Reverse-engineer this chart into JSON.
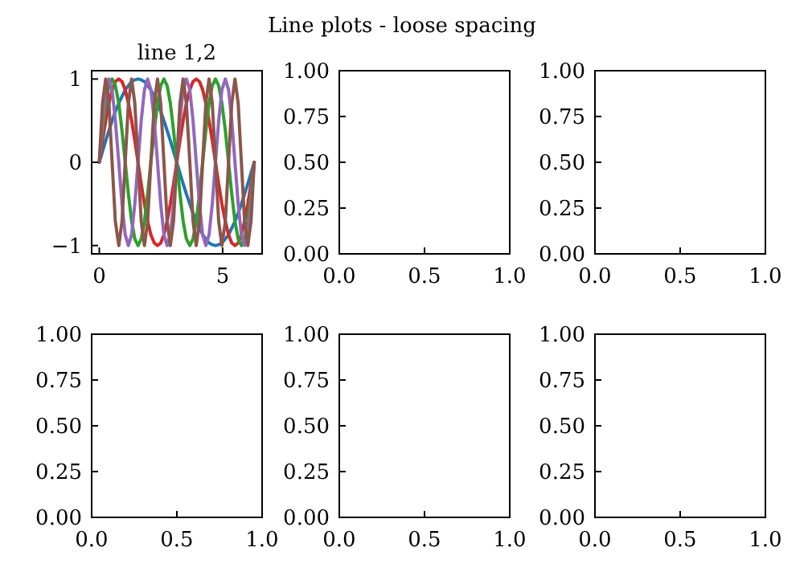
{
  "chart_data": [
    {
      "type": "other",
      "title": "Line plots - loose spacing"
    },
    {
      "type": "line",
      "title": "line 1,2",
      "x": [
        0,
        0.13,
        0.26,
        0.39,
        0.52,
        0.65,
        0.79,
        0.92,
        1.05,
        1.18,
        1.31,
        1.44,
        1.57,
        1.7,
        1.83,
        1.96,
        2.09,
        2.23,
        2.36,
        2.49,
        2.62,
        2.75,
        2.88,
        3.01,
        3.14,
        3.27,
        3.4,
        3.53,
        3.67,
        3.8,
        3.93,
        4.06,
        4.19,
        4.32,
        4.45,
        4.58,
        4.71,
        4.84,
        4.97,
        5.11,
        5.24,
        5.37,
        5.5,
        5.63,
        5.76,
        5.89,
        6.02,
        6.15,
        6.28
      ],
      "series": [
        {
          "color": "#1f77b4",
          "values": [
            0,
            0.13,
            0.26,
            0.38,
            0.5,
            0.61,
            0.71,
            0.79,
            0.87,
            0.92,
            0.97,
            0.99,
            1,
            0.99,
            0.97,
            0.92,
            0.87,
            0.79,
            0.71,
            0.61,
            0.5,
            0.38,
            0.26,
            0.13,
            0,
            -0.13,
            -0.26,
            -0.38,
            -0.5,
            -0.61,
            -0.71,
            -0.79,
            -0.87,
            -0.92,
            -0.97,
            -0.99,
            -1,
            -0.99,
            -0.97,
            -0.92,
            -0.87,
            -0.79,
            -0.71,
            -0.61,
            -0.5,
            -0.38,
            -0.26,
            -0.13,
            0
          ]
        },
        {
          "color": "#d62728",
          "values": [
            0,
            0.26,
            0.5,
            0.71,
            0.87,
            0.97,
            1,
            0.97,
            0.87,
            0.71,
            0.5,
            0.26,
            0,
            -0.26,
            -0.5,
            -0.71,
            -0.87,
            -0.97,
            -1,
            -0.97,
            -0.87,
            -0.71,
            -0.5,
            -0.26,
            0,
            0.26,
            0.5,
            0.71,
            0.87,
            0.97,
            1,
            0.97,
            0.87,
            0.71,
            0.5,
            0.26,
            0,
            -0.26,
            -0.5,
            -0.71,
            -0.87,
            -0.97,
            -1,
            -0.97,
            -0.87,
            -0.71,
            -0.5,
            -0.26,
            0
          ]
        },
        {
          "color": "#2ca02c",
          "values": [
            0,
            0.38,
            0.71,
            0.92,
            1,
            0.92,
            0.71,
            0.38,
            0,
            -0.38,
            -0.71,
            -0.92,
            -1,
            -0.92,
            -0.71,
            -0.38,
            0,
            0.38,
            0.71,
            0.92,
            1,
            0.92,
            0.71,
            0.38,
            0,
            -0.38,
            -0.71,
            -0.92,
            -1,
            -0.92,
            -0.71,
            -0.38,
            0,
            0.38,
            0.71,
            0.92,
            1,
            0.92,
            0.71,
            0.38,
            0,
            -0.38,
            -0.71,
            -0.92,
            -1,
            -0.92,
            -0.71,
            -0.38,
            0
          ]
        },
        {
          "color": "#9467bd",
          "values": [
            0,
            0.5,
            0.87,
            1,
            0.87,
            0.5,
            0,
            -0.5,
            -0.87,
            -1,
            -0.87,
            -0.5,
            0,
            0.5,
            0.87,
            1,
            0.87,
            0.5,
            0,
            -0.5,
            -0.87,
            -1,
            -0.87,
            -0.5,
            0,
            0.5,
            0.87,
            1,
            0.87,
            0.5,
            0,
            -0.5,
            -0.87,
            -1,
            -0.87,
            -0.5,
            0,
            0.5,
            0.87,
            1,
            0.87,
            0.5,
            0,
            -0.5,
            -0.87,
            -1,
            -0.87,
            -0.5,
            0
          ]
        },
        {
          "color": "#8c564b",
          "values": [
            0,
            0.71,
            1,
            0.71,
            0,
            -0.71,
            -1,
            -0.71,
            0,
            0.71,
            1,
            0.71,
            0,
            -0.71,
            -1,
            -0.71,
            0,
            0.71,
            1,
            0.71,
            0,
            -0.71,
            -1,
            -0.71,
            0,
            0.71,
            1,
            0.71,
            0,
            -0.71,
            -1,
            -0.71,
            0,
            0.71,
            1,
            0.71,
            0,
            -0.71,
            -1,
            -0.71,
            0,
            0.71,
            1,
            0.71,
            0,
            -0.71,
            -1,
            -0.71,
            0
          ]
        }
      ],
      "xlim": [
        -0.31,
        6.6
      ],
      "ylim": [
        -1.1,
        1.1
      ],
      "xticks": [
        0,
        5
      ],
      "yticks": [
        -1,
        0,
        1
      ]
    },
    {
      "type": "line",
      "xlim": [
        0,
        1
      ],
      "ylim": [
        0,
        1
      ],
      "xticks": [
        {
          "value": 0,
          "label": "0.0"
        },
        {
          "value": 0.5,
          "label": "0.5"
        },
        {
          "value": 1,
          "label": "1.0"
        }
      ],
      "yticks": [
        {
          "value": 0,
          "label": "0.00"
        },
        {
          "value": 0.25,
          "label": "0.25"
        },
        {
          "value": 0.5,
          "label": "0.50"
        },
        {
          "value": 0.75,
          "label": "0.75"
        },
        {
          "value": 1,
          "label": "1.00"
        }
      ]
    },
    {
      "type": "line",
      "xlim": [
        0,
        1
      ],
      "ylim": [
        0,
        1
      ],
      "xticks": [
        {
          "value": 0,
          "label": "0.0"
        },
        {
          "value": 0.5,
          "label": "0.5"
        },
        {
          "value": 1,
          "label": "1.0"
        }
      ],
      "yticks": [
        {
          "value": 0,
          "label": "0.00"
        },
        {
          "value": 0.25,
          "label": "0.25"
        },
        {
          "value": 0.5,
          "label": "0.50"
        },
        {
          "value": 0.75,
          "label": "0.75"
        },
        {
          "value": 1,
          "label": "1.00"
        }
      ]
    },
    {
      "type": "line",
      "xlim": [
        0,
        1
      ],
      "ylim": [
        0,
        1
      ],
      "xticks": [
        {
          "value": 0,
          "label": "0.0"
        },
        {
          "value": 0.5,
          "label": "0.5"
        },
        {
          "value": 1,
          "label": "1.0"
        }
      ],
      "yticks": [
        {
          "value": 0,
          "label": "0.00"
        },
        {
          "value": 0.25,
          "label": "0.25"
        },
        {
          "value": 0.5,
          "label": "0.50"
        },
        {
          "value": 0.75,
          "label": "0.75"
        },
        {
          "value": 1,
          "label": "1.00"
        }
      ]
    },
    {
      "type": "line",
      "xlim": [
        0,
        1
      ],
      "ylim": [
        0,
        1
      ],
      "xticks": [
        {
          "value": 0,
          "label": "0.0"
        },
        {
          "value": 0.5,
          "label": "0.5"
        },
        {
          "value": 1,
          "label": "1.0"
        }
      ],
      "yticks": [
        {
          "value": 0,
          "label": "0.00"
        },
        {
          "value": 0.25,
          "label": "0.25"
        },
        {
          "value": 0.5,
          "label": "0.50"
        },
        {
          "value": 0.75,
          "label": "0.75"
        },
        {
          "value": 1,
          "label": "1.00"
        }
      ]
    },
    {
      "type": "line",
      "xlim": [
        0,
        1
      ],
      "ylim": [
        0,
        1
      ],
      "xticks": [
        {
          "value": 0,
          "label": "0.0"
        },
        {
          "value": 0.5,
          "label": "0.5"
        },
        {
          "value": 1,
          "label": "1.0"
        }
      ],
      "yticks": [
        {
          "value": 0,
          "label": "0.00"
        },
        {
          "value": 0.25,
          "label": "0.25"
        },
        {
          "value": 0.5,
          "label": "0.50"
        },
        {
          "value": 0.75,
          "label": "0.75"
        },
        {
          "value": 1,
          "label": "1.00"
        }
      ]
    }
  ]
}
